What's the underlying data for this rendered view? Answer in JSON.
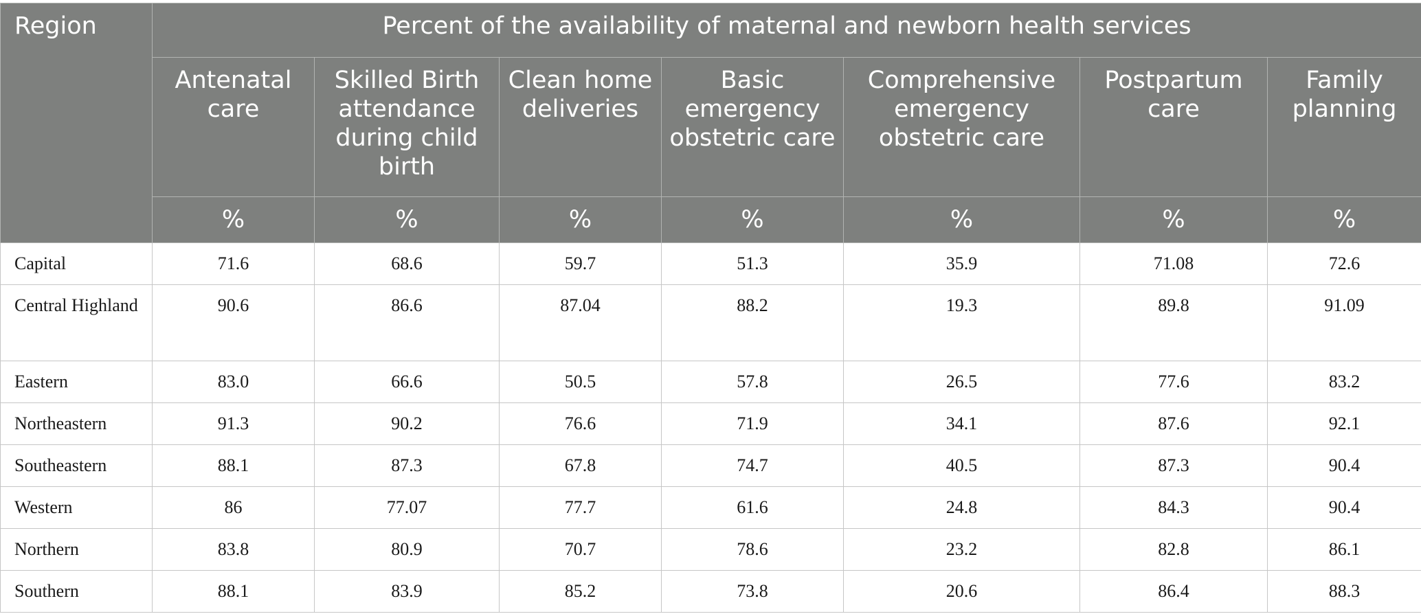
{
  "table": {
    "region_header": "Region",
    "group_header": "Percent of the availability of maternal and newborn health services",
    "columns": [
      "Antenatal care",
      "Skilled Birth attendance during child birth",
      "Clean home deliveries",
      "Basic emergency obstetric care",
      "Comprehensive emergency obstetric care",
      "Postpartum care",
      "Family planning"
    ],
    "unit": "%",
    "rows": [
      {
        "region": "Capital",
        "values": [
          "71.6",
          "68.6",
          "59.7",
          "51.3",
          "35.9",
          "71.08",
          "72.6"
        ]
      },
      {
        "region": "Central Highland",
        "values": [
          "90.6",
          "86.6",
          "87.04",
          "88.2",
          "19.3",
          "89.8",
          "91.09"
        ]
      },
      {
        "region": "Eastern",
        "values": [
          "83.0",
          "66.6",
          "50.5",
          "57.8",
          "26.5",
          "77.6",
          "83.2"
        ]
      },
      {
        "region": "Northeastern",
        "values": [
          "91.3",
          "90.2",
          "76.6",
          "71.9",
          "34.1",
          "87.6",
          "92.1"
        ]
      },
      {
        "region": "Southeastern",
        "values": [
          "88.1",
          "87.3",
          "67.8",
          "74.7",
          "40.5",
          "87.3",
          "90.4"
        ]
      },
      {
        "region": "Western",
        "values": [
          "86",
          "77.07",
          "77.7",
          "61.6",
          "24.8",
          "84.3",
          "90.4"
        ]
      },
      {
        "region": "Northern",
        "values": [
          "83.8",
          "80.9",
          "70.7",
          "78.6",
          "23.2",
          "82.8",
          "86.1"
        ]
      },
      {
        "region": "Southern",
        "values": [
          "88.1",
          "83.9",
          "85.2",
          "73.8",
          "20.6",
          "86.4",
          "88.3"
        ]
      }
    ]
  }
}
